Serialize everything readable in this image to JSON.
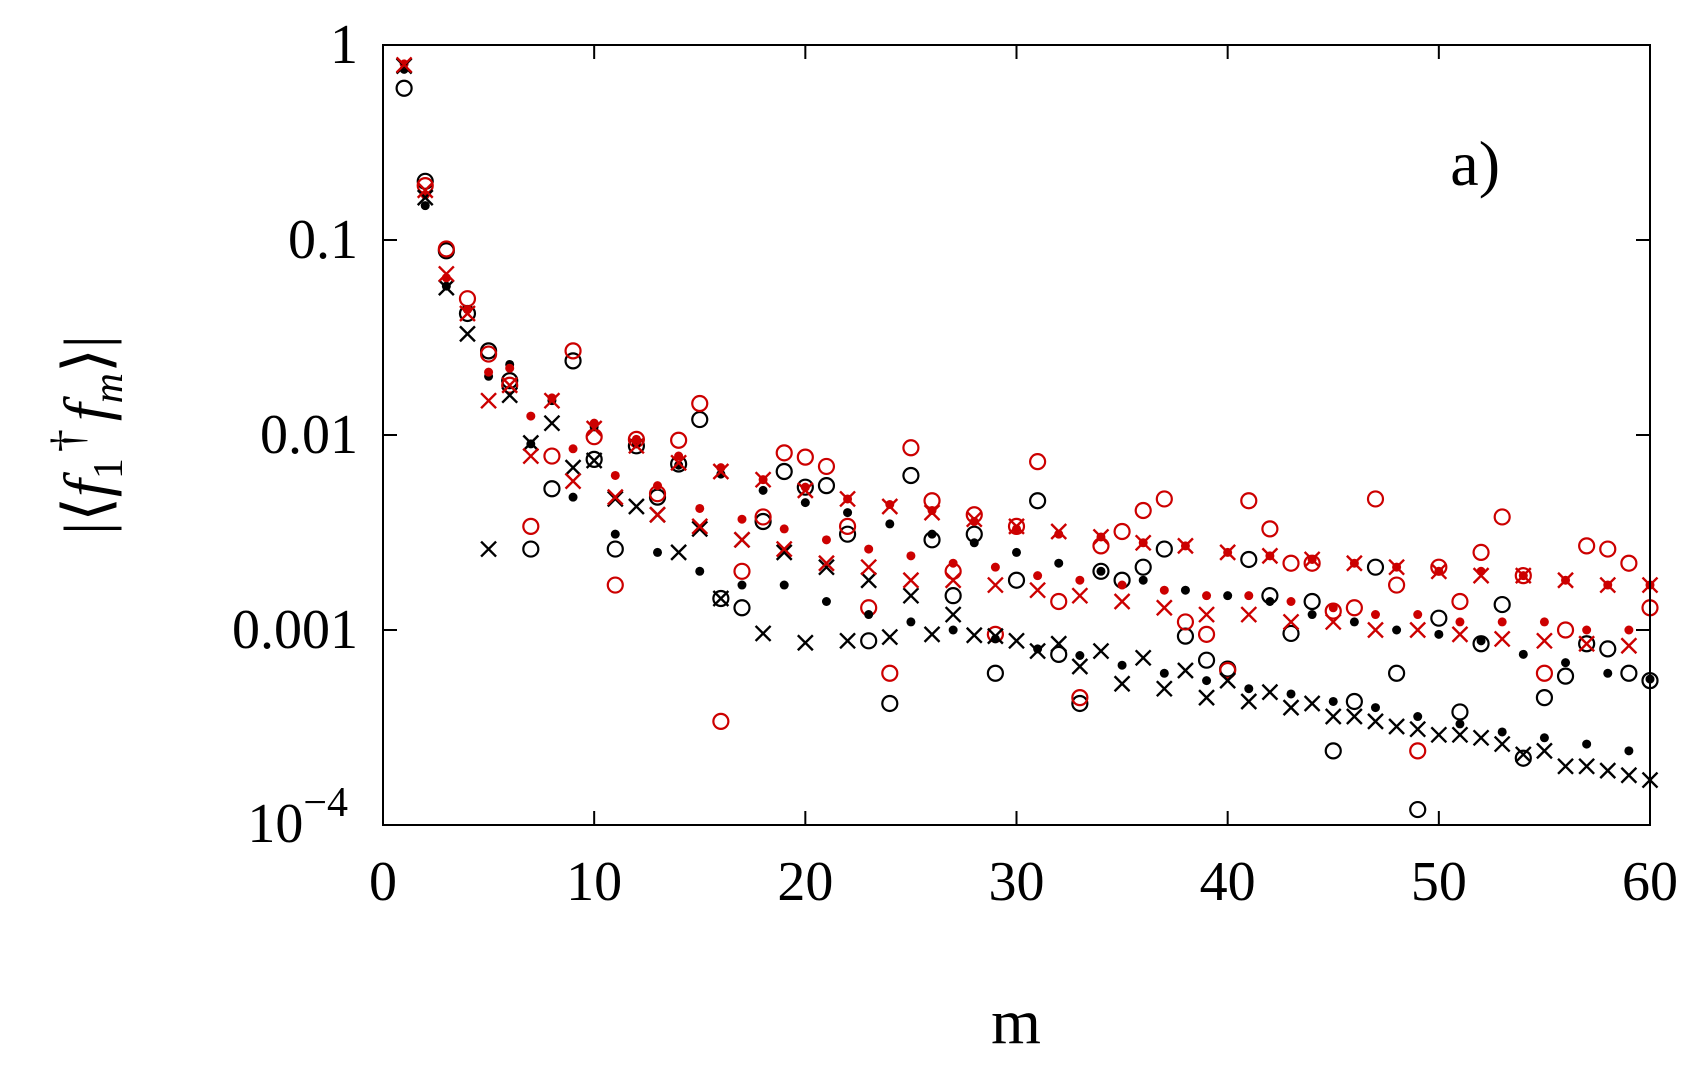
{
  "chart_data": {
    "type": "scatter",
    "title": "",
    "panel_label": "a)",
    "xlabel": "m",
    "ylabel": {
      "open": "|⟨",
      "f1": "f",
      "sub1": "1",
      "dagger": "†",
      "fm": "f",
      "subm": "m",
      "close": "⟩|"
    },
    "x_axis": {
      "range": [
        0,
        60
      ],
      "ticks": [
        0,
        10,
        20,
        30,
        40,
        50,
        60
      ],
      "tick_labels": [
        "0",
        "10",
        "20",
        "30",
        "40",
        "50",
        "60"
      ]
    },
    "y_axis": {
      "scale": "log",
      "range": [
        0.0001,
        1
      ],
      "ticks": [
        0.0001,
        0.001,
        0.01,
        0.1,
        1
      ],
      "tick_labels": [
        "0.001",
        "0.01",
        "0.1",
        "1"
      ],
      "lowest_tick_label": {
        "base": "10",
        "exponent": "−4"
      }
    },
    "colors": {
      "black": "#000000",
      "red": "#cc0000"
    },
    "series": [
      {
        "name": "black open circles",
        "marker": "open-circle",
        "color": "#000000",
        "x": [
          1,
          2,
          3,
          4,
          5,
          6,
          7,
          8,
          9,
          10,
          11,
          12,
          13,
          14,
          15,
          16,
          17,
          18,
          19,
          20,
          21,
          22,
          23,
          24,
          25,
          26,
          27,
          28,
          29,
          30,
          31,
          32,
          33,
          34,
          35,
          36,
          37,
          38,
          39,
          40,
          41,
          42,
          43,
          44,
          45,
          46,
          47,
          48,
          49,
          50,
          51,
          52,
          53,
          54,
          55,
          56,
          57,
          58,
          59,
          60
        ],
        "y": [
          0.6,
          0.2,
          0.088,
          0.042,
          0.027,
          0.019,
          0.0026,
          0.0053,
          0.024,
          0.0075,
          0.0026,
          0.0088,
          0.0048,
          0.0071,
          0.012,
          0.00145,
          0.0013,
          0.0036,
          0.0065,
          0.0054,
          0.0055,
          0.0031,
          0.00088,
          0.00042,
          0.0062,
          0.0029,
          0.0015,
          0.0031,
          0.0006,
          0.0018,
          0.0046,
          0.00075,
          0.00042,
          0.002,
          0.0018,
          0.0021,
          0.0026,
          0.00093,
          0.0007,
          0.00063,
          0.0023,
          0.0015,
          0.00096,
          0.0014,
          0.00024,
          0.00043,
          0.0021,
          0.0006,
          0.00012,
          0.00115,
          0.00038,
          0.00085,
          0.00135,
          0.00022,
          0.00045,
          0.00058,
          0.00085,
          0.0008,
          0.0006,
          0.00055
        ]
      },
      {
        "name": "red open circles",
        "marker": "open-circle",
        "color": "#cc0000",
        "x": [
          2,
          3,
          4,
          5,
          6,
          7,
          8,
          9,
          10,
          11,
          12,
          13,
          14,
          15,
          16,
          17,
          18,
          19,
          20,
          21,
          22,
          23,
          24,
          25,
          26,
          27,
          28,
          29,
          30,
          31,
          32,
          33,
          34,
          35,
          36,
          37,
          38,
          39,
          40,
          41,
          42,
          43,
          44,
          45,
          46,
          47,
          48,
          49,
          50,
          51,
          52,
          53,
          54,
          55,
          56,
          57,
          58,
          59,
          60
        ],
        "y": [
          0.19,
          0.09,
          0.05,
          0.026,
          0.018,
          0.0034,
          0.0078,
          0.027,
          0.0098,
          0.0017,
          0.0095,
          0.005,
          0.0094,
          0.0145,
          0.00034,
          0.002,
          0.0038,
          0.0081,
          0.0077,
          0.0069,
          0.0034,
          0.0013,
          0.0006,
          0.0086,
          0.0046,
          0.002,
          0.0039,
          0.00095,
          0.0034,
          0.0073,
          0.0014,
          0.00045,
          0.0027,
          0.0032,
          0.0041,
          0.0047,
          0.0011,
          0.00095,
          0.00062,
          0.0046,
          0.0033,
          0.0022,
          0.0022,
          0.00125,
          0.0013,
          0.0047,
          0.0017,
          0.00024,
          0.0021,
          0.0014,
          0.0025,
          0.0038,
          0.0019,
          0.0006,
          0.001,
          0.0027,
          0.0026,
          0.0022,
          0.0013
        ]
      },
      {
        "name": "black filled dots",
        "marker": "filled-dot",
        "color": "#000000",
        "x": [
          1,
          2,
          3,
          4,
          5,
          6,
          7,
          8,
          9,
          10,
          11,
          12,
          13,
          14,
          15,
          16,
          17,
          18,
          19,
          20,
          21,
          22,
          23,
          24,
          25,
          26,
          27,
          28,
          29,
          30,
          31,
          32,
          33,
          34,
          35,
          36,
          37,
          38,
          39,
          40,
          41,
          42,
          43,
          44,
          45,
          46,
          47,
          48,
          49,
          50,
          51,
          52,
          53,
          54,
          55,
          56,
          57,
          58,
          59,
          60
        ],
        "y": [
          0.75,
          0.15,
          0.058,
          0.044,
          0.02,
          0.023,
          0.009,
          0.015,
          0.0048,
          0.011,
          0.0031,
          0.009,
          0.0025,
          0.007,
          0.002,
          0.0063,
          0.0017,
          0.0052,
          0.0017,
          0.0045,
          0.0014,
          0.004,
          0.0012,
          0.0035,
          0.0011,
          0.0031,
          0.001,
          0.0028,
          0.0009,
          0.0025,
          0.0008,
          0.0022,
          0.00074,
          0.002,
          0.00066,
          0.0018,
          0.0006,
          0.0016,
          0.00055,
          0.0015,
          0.0005,
          0.0014,
          0.00047,
          0.0012,
          0.00043,
          0.0011,
          0.0004,
          0.001,
          0.00036,
          0.00095,
          0.00033,
          0.00088,
          0.0003,
          0.00075,
          0.00028,
          0.00068,
          0.00026,
          0.0006,
          0.00024,
          0.00056
        ]
      },
      {
        "name": "red filled dots",
        "marker": "filled-dot",
        "color": "#cc0000",
        "x": [
          1,
          2,
          3,
          4,
          5,
          6,
          7,
          8,
          9,
          10,
          11,
          12,
          13,
          14,
          15,
          16,
          17,
          18,
          19,
          20,
          21,
          22,
          23,
          24,
          25,
          26,
          27,
          28,
          29,
          30,
          31,
          32,
          33,
          34,
          35,
          36,
          37,
          38,
          39,
          40,
          41,
          42,
          43,
          44,
          45,
          46,
          47,
          48,
          49,
          50,
          51,
          52,
          53,
          54,
          55,
          56,
          57,
          58,
          59,
          60
        ],
        "y": [
          0.8,
          0.17,
          0.064,
          0.044,
          0.021,
          0.022,
          0.0125,
          0.0155,
          0.0085,
          0.0115,
          0.0062,
          0.0095,
          0.0055,
          0.0078,
          0.0042,
          0.0068,
          0.0037,
          0.0059,
          0.0033,
          0.0054,
          0.0029,
          0.0047,
          0.0026,
          0.0044,
          0.0024,
          0.0041,
          0.0022,
          0.0036,
          0.0021,
          0.0033,
          0.0019,
          0.0031,
          0.0018,
          0.003,
          0.0017,
          0.0028,
          0.0016,
          0.0027,
          0.0015,
          0.0025,
          0.0015,
          0.0024,
          0.0014,
          0.0023,
          0.0013,
          0.0022,
          0.0012,
          0.0021,
          0.0012,
          0.002,
          0.0011,
          0.002,
          0.0011,
          0.0019,
          0.0011,
          0.0018,
          0.001,
          0.0017,
          0.001,
          0.0017
        ]
      },
      {
        "name": "black crosses",
        "marker": "cross",
        "color": "#000000",
        "x": [
          1,
          2,
          3,
          4,
          5,
          6,
          7,
          8,
          9,
          10,
          11,
          12,
          13,
          14,
          15,
          16,
          17,
          18,
          19,
          20,
          21,
          22,
          23,
          24,
          25,
          26,
          27,
          28,
          29,
          30,
          31,
          32,
          33,
          34,
          35,
          36,
          37,
          38,
          39,
          40,
          41,
          42,
          43,
          44,
          45,
          46,
          47,
          48,
          49,
          50,
          51,
          52,
          53,
          54,
          55,
          56,
          57,
          58,
          59,
          60
        ],
        "y": [
          0.78,
          0.165,
          0.057,
          0.033,
          0.0026,
          0.016,
          0.0091,
          0.0115,
          0.0068,
          0.0074,
          0.0047,
          0.0043,
          0.0039,
          0.0025,
          0.0033,
          0.00145,
          0.0029,
          0.00096,
          0.0025,
          0.00086,
          0.0021,
          0.00088,
          0.0018,
          0.00092,
          0.0015,
          0.00095,
          0.0012,
          0.00094,
          0.00093,
          0.00088,
          0.00078,
          0.00085,
          0.00065,
          0.00078,
          0.00053,
          0.00072,
          0.0005,
          0.00062,
          0.00045,
          0.00055,
          0.00043,
          0.00048,
          0.0004,
          0.00042,
          0.00036,
          0.00036,
          0.00034,
          0.00032,
          0.00031,
          0.00029,
          0.00029,
          0.00028,
          0.00026,
          0.00023,
          0.00024,
          0.0002,
          0.0002,
          0.00019,
          0.00018,
          0.00017
        ]
      },
      {
        "name": "red crosses",
        "marker": "cross",
        "color": "#cc0000",
        "x": [
          1,
          2,
          3,
          4,
          5,
          6,
          7,
          8,
          9,
          10,
          11,
          12,
          13,
          14,
          15,
          16,
          17,
          18,
          19,
          20,
          21,
          22,
          23,
          24,
          25,
          26,
          27,
          28,
          29,
          30,
          31,
          32,
          33,
          34,
          35,
          36,
          37,
          38,
          39,
          40,
          41,
          42,
          43,
          44,
          45,
          46,
          47,
          48,
          49,
          50,
          51,
          52,
          53,
          54,
          55,
          56,
          57,
          58,
          59,
          60
        ],
        "y": [
          0.79,
          0.18,
          0.067,
          0.042,
          0.015,
          0.018,
          0.0078,
          0.015,
          0.0058,
          0.0108,
          0.0048,
          0.0088,
          0.0039,
          0.0072,
          0.0034,
          0.0065,
          0.0029,
          0.0059,
          0.0026,
          0.0052,
          0.0022,
          0.0047,
          0.0021,
          0.0043,
          0.0018,
          0.004,
          0.0018,
          0.0037,
          0.0017,
          0.0034,
          0.0016,
          0.0032,
          0.0015,
          0.003,
          0.0014,
          0.0028,
          0.0013,
          0.0027,
          0.0012,
          0.0025,
          0.0012,
          0.0024,
          0.0011,
          0.0023,
          0.0011,
          0.0022,
          0.001,
          0.0021,
          0.001,
          0.002,
          0.00095,
          0.0019,
          0.0009,
          0.0019,
          0.00088,
          0.0018,
          0.00085,
          0.0017,
          0.00083,
          0.0017
        ]
      }
    ]
  }
}
